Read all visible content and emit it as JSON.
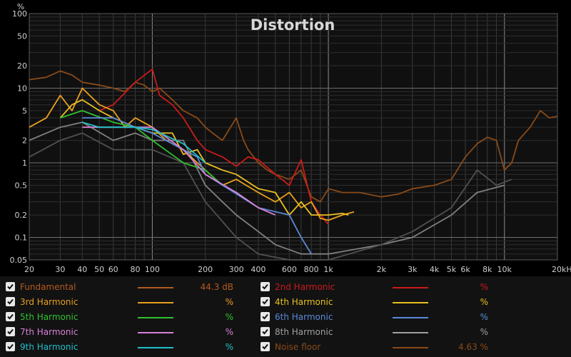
{
  "chart_data": {
    "type": "line",
    "title": "Distortion",
    "y_unit_label": "%",
    "x_scale": "log",
    "y_scale": "log",
    "xlim": [
      20,
      20000
    ],
    "ylim": [
      0.05,
      100
    ],
    "grid": true,
    "x_ticks": [
      {
        "v": 20,
        "t": "20"
      },
      {
        "v": 30,
        "t": "30"
      },
      {
        "v": 40,
        "t": "40"
      },
      {
        "v": 50,
        "t": "50"
      },
      {
        "v": 60,
        "t": "60"
      },
      {
        "v": 80,
        "t": "80"
      },
      {
        "v": 100,
        "t": "100"
      },
      {
        "v": 200,
        "t": "200"
      },
      {
        "v": 300,
        "t": "300"
      },
      {
        "v": 400,
        "t": "400"
      },
      {
        "v": 600,
        "t": "600"
      },
      {
        "v": 800,
        "t": "800"
      },
      {
        "v": 1000,
        "t": "1k"
      },
      {
        "v": 2000,
        "t": "2k"
      },
      {
        "v": 3000,
        "t": "3k"
      },
      {
        "v": 4000,
        "t": "4k"
      },
      {
        "v": 5000,
        "t": "5k"
      },
      {
        "v": 6000,
        "t": "6k"
      },
      {
        "v": 8000,
        "t": "8k"
      },
      {
        "v": 10000,
        "t": "10k"
      },
      {
        "v": 20000,
        "t": "20kHz"
      }
    ],
    "y_ticks": [
      {
        "v": 100,
        "t": "100"
      },
      {
        "v": 50,
        "t": "50"
      },
      {
        "v": 20,
        "t": "20"
      },
      {
        "v": 10,
        "t": "10"
      },
      {
        "v": 5,
        "t": "5"
      },
      {
        "v": 2,
        "t": "2"
      },
      {
        "v": 1,
        "t": "1"
      },
      {
        "v": 0.5,
        "t": "0.5"
      },
      {
        "v": 0.2,
        "t": "0.2"
      },
      {
        "v": 0.1,
        "t": "0.1"
      },
      {
        "v": 0.05,
        "t": "0.05"
      }
    ],
    "series": [
      {
        "name": "Noise floor",
        "color": "#8a4a18",
        "points": [
          [
            20,
            13
          ],
          [
            25,
            14
          ],
          [
            30,
            17
          ],
          [
            35,
            15
          ],
          [
            40,
            12
          ],
          [
            50,
            11
          ],
          [
            60,
            10
          ],
          [
            70,
            9
          ],
          [
            80,
            12
          ],
          [
            90,
            11
          ],
          [
            100,
            9
          ],
          [
            110,
            10
          ],
          [
            130,
            7
          ],
          [
            150,
            5
          ],
          [
            180,
            4
          ],
          [
            200,
            3
          ],
          [
            220,
            2.5
          ],
          [
            250,
            2
          ],
          [
            300,
            4
          ],
          [
            330,
            2
          ],
          [
            350,
            1.5
          ],
          [
            400,
            1
          ],
          [
            450,
            0.8
          ],
          [
            500,
            0.7
          ],
          [
            600,
            0.6
          ],
          [
            700,
            0.8
          ],
          [
            800,
            0.35
          ],
          [
            900,
            0.3
          ],
          [
            1000,
            0.45
          ],
          [
            1200,
            0.4
          ],
          [
            1500,
            0.4
          ],
          [
            2000,
            0.35
          ],
          [
            2500,
            0.38
          ],
          [
            3000,
            0.45
          ],
          [
            4000,
            0.5
          ],
          [
            5000,
            0.6
          ],
          [
            6000,
            1.2
          ],
          [
            7000,
            1.8
          ],
          [
            8000,
            2.2
          ],
          [
            9000,
            2
          ],
          [
            10000,
            0.8
          ],
          [
            11000,
            1
          ],
          [
            12000,
            2
          ],
          [
            14000,
            3
          ],
          [
            16000,
            5
          ],
          [
            18000,
            4
          ],
          [
            20000,
            4.2
          ]
        ]
      },
      {
        "name": "8th Harmonic",
        "color": "#808080",
        "points": [
          [
            20,
            2
          ],
          [
            30,
            3
          ],
          [
            40,
            3.5
          ],
          [
            60,
            2
          ],
          [
            80,
            2.5
          ],
          [
            100,
            2
          ],
          [
            150,
            2
          ],
          [
            200,
            0.5
          ],
          [
            250,
            0.3
          ],
          [
            300,
            0.2
          ],
          [
            400,
            0.12
          ],
          [
            500,
            0.08
          ],
          [
            700,
            0.06
          ],
          [
            1000,
            0.06
          ],
          [
            2000,
            0.08
          ],
          [
            3000,
            0.1
          ],
          [
            5000,
            0.2
          ],
          [
            7000,
            0.4
          ],
          [
            10000,
            0.5
          ]
        ]
      },
      {
        "name": "Fundamental-dim",
        "color": "#505050",
        "points": [
          [
            20,
            1.2
          ],
          [
            30,
            2
          ],
          [
            40,
            2.5
          ],
          [
            60,
            1.5
          ],
          [
            100,
            1.5
          ],
          [
            150,
            1
          ],
          [
            200,
            0.3
          ],
          [
            300,
            0.1
          ],
          [
            400,
            0.06
          ],
          [
            600,
            0.05
          ],
          [
            1000,
            0.05
          ],
          [
            2000,
            0.08
          ],
          [
            3000,
            0.12
          ],
          [
            5000,
            0.25
          ],
          [
            7000,
            0.8
          ],
          [
            9000,
            0.5
          ],
          [
            11000,
            0.6
          ]
        ]
      },
      {
        "name": "2nd Harmonic",
        "color": "#cc1a1a",
        "points": [
          [
            50,
            5
          ],
          [
            60,
            6
          ],
          [
            80,
            12
          ],
          [
            100,
            18
          ],
          [
            110,
            8
          ],
          [
            130,
            6
          ],
          [
            150,
            4
          ],
          [
            180,
            2
          ],
          [
            200,
            1.5
          ],
          [
            250,
            1.2
          ],
          [
            300,
            0.9
          ],
          [
            350,
            1.2
          ],
          [
            400,
            1.1
          ],
          [
            500,
            0.7
          ],
          [
            600,
            0.5
          ],
          [
            700,
            1.1
          ],
          [
            800,
            0.3
          ],
          [
            900,
            0.2
          ],
          [
            1000,
            0.15
          ]
        ]
      },
      {
        "name": "3rd Harmonic",
        "color": "#e8a020",
        "points": [
          [
            20,
            3
          ],
          [
            25,
            4
          ],
          [
            30,
            8
          ],
          [
            35,
            5
          ],
          [
            40,
            10
          ],
          [
            50,
            6
          ],
          [
            60,
            5
          ],
          [
            70,
            3
          ],
          [
            80,
            4
          ],
          [
            100,
            3
          ],
          [
            120,
            2
          ],
          [
            150,
            1.5
          ],
          [
            180,
            1
          ],
          [
            200,
            0.8
          ],
          [
            250,
            0.5
          ],
          [
            300,
            0.6
          ],
          [
            400,
            0.4
          ],
          [
            500,
            0.3
          ],
          [
            600,
            0.4
          ],
          [
            700,
            0.25
          ],
          [
            800,
            0.3
          ],
          [
            900,
            0.18
          ],
          [
            1000,
            0.17
          ],
          [
            1200,
            0.2
          ],
          [
            1400,
            0.22
          ]
        ]
      },
      {
        "name": "4th Harmonic",
        "color": "#e8c020",
        "points": [
          [
            30,
            4
          ],
          [
            35,
            6
          ],
          [
            40,
            7
          ],
          [
            50,
            5
          ],
          [
            60,
            4
          ],
          [
            80,
            3
          ],
          [
            100,
            2.5
          ],
          [
            130,
            2.5
          ],
          [
            150,
            1.3
          ],
          [
            180,
            1.5
          ],
          [
            200,
            1
          ],
          [
            250,
            0.8
          ],
          [
            300,
            0.7
          ],
          [
            400,
            0.45
          ],
          [
            500,
            0.4
          ],
          [
            600,
            0.2
          ],
          [
            700,
            0.3
          ],
          [
            800,
            0.2
          ],
          [
            1000,
            0.2
          ],
          [
            1200,
            0.21
          ],
          [
            1300,
            0.2
          ]
        ]
      },
      {
        "name": "5th Harmonic",
        "color": "#30c030",
        "points": [
          [
            30,
            4
          ],
          [
            40,
            5
          ],
          [
            60,
            3.5
          ],
          [
            80,
            3
          ],
          [
            100,
            2
          ],
          [
            150,
            1
          ],
          [
            200,
            0.8
          ],
          [
            250,
            0.5
          ],
          [
            300,
            0.4
          ],
          [
            400,
            0.25
          ]
        ]
      },
      {
        "name": "6th Harmonic",
        "color": "#5a8ad8",
        "points": [
          [
            40,
            4
          ],
          [
            60,
            4
          ],
          [
            80,
            3
          ],
          [
            100,
            2.5
          ],
          [
            150,
            1.5
          ],
          [
            180,
            1.2
          ],
          [
            200,
            0.7
          ],
          [
            400,
            0.25
          ],
          [
            600,
            0.2
          ],
          [
            700,
            0.1
          ],
          [
            800,
            0.06
          ]
        ]
      },
      {
        "name": "7th Harmonic",
        "color": "#d880d8",
        "points": [
          [
            40,
            3
          ],
          [
            60,
            3
          ],
          [
            80,
            3
          ],
          [
            100,
            3
          ],
          [
            150,
            1.5
          ],
          [
            200,
            0.7
          ],
          [
            300,
            0.4
          ],
          [
            400,
            0.25
          ],
          [
            500,
            0.2
          ]
        ]
      },
      {
        "name": "9th Harmonic",
        "color": "#20c0c8",
        "points": [
          [
            40,
            3.5
          ],
          [
            50,
            3
          ],
          [
            60,
            3
          ],
          [
            70,
            3
          ],
          [
            80,
            3
          ],
          [
            100,
            2.8
          ],
          [
            150,
            1.8
          ],
          [
            200,
            1
          ]
        ]
      }
    ]
  },
  "legend": [
    {
      "label": "Fundamental",
      "value": "44.3 dB",
      "color": "#b35a1f"
    },
    {
      "label": "2nd Harmonic",
      "value": "%",
      "color": "#cc1a1a"
    },
    {
      "label": "3rd Harmonic",
      "value": "%",
      "color": "#e8a020"
    },
    {
      "label": "4th Harmonic",
      "value": "%",
      "color": "#e8c020"
    },
    {
      "label": "5th Harmonic",
      "value": "%",
      "color": "#30c030"
    },
    {
      "label": "6th Harmonic",
      "value": "%",
      "color": "#5a8ad8"
    },
    {
      "label": "7th Harmonic",
      "value": "%",
      "color": "#d880d8"
    },
    {
      "label": "8th Harmonic",
      "value": "%",
      "color": "#a0a0a0"
    },
    {
      "label": "9th Harmonic",
      "value": "%",
      "color": "#20c0c8"
    },
    {
      "label": "Noise floor",
      "value": "4.63 %",
      "color": "#8a4a18"
    }
  ]
}
